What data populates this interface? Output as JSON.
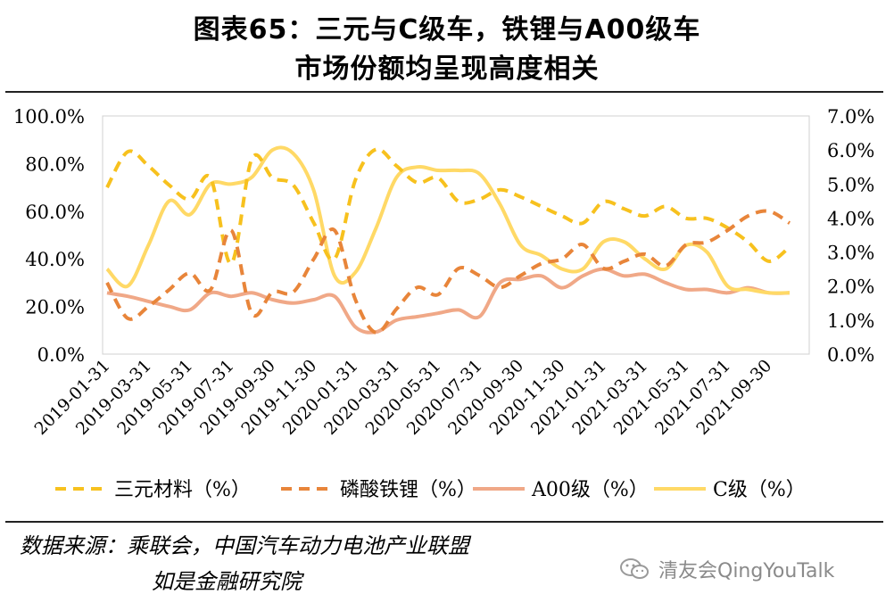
{
  "header": {
    "title_line1": "图表65：三元与C级车，铁锂与A00级车",
    "title_line2": "市场份额均呈现高度相关"
  },
  "footer": {
    "source_line1": "数据来源：乘联会，中国汽车动力电池产业联盟",
    "source_line2": "如是金融研究院",
    "watermark_text": "清友会QingYouTalk"
  },
  "chart_data": {
    "type": "line",
    "x": [
      "2019-01-31",
      "2019-02-28",
      "2019-03-31",
      "2019-04-30",
      "2019-05-31",
      "2019-06-30",
      "2019-07-31",
      "2019-08-31",
      "2019-09-30",
      "2019-10-31",
      "2019-11-30",
      "2019-12-31",
      "2020-01-31",
      "2020-02-29",
      "2020-03-31",
      "2020-04-30",
      "2020-05-31",
      "2020-06-30",
      "2020-07-31",
      "2020-08-31",
      "2020-09-30",
      "2020-10-31",
      "2020-11-30",
      "2020-12-31",
      "2021-01-31",
      "2021-02-28",
      "2021-03-31",
      "2021-04-30",
      "2021-05-31",
      "2021-06-30",
      "2021-07-31",
      "2021-08-31",
      "2021-09-30",
      "2021-10-31"
    ],
    "xticks": [
      "2019-01-31",
      "2019-03-31",
      "2019-05-31",
      "2019-07-31",
      "2019-09-30",
      "2019-11-30",
      "2020-01-31",
      "2020-03-31",
      "2020-05-31",
      "2020-07-31",
      "2020-09-30",
      "2020-11-30",
      "2021-01-31",
      "2021-03-31",
      "2021-05-31",
      "2021-07-31",
      "2021-09-30"
    ],
    "y_left": {
      "ticks": [
        "0.0%",
        "20.0%",
        "40.0%",
        "60.0%",
        "80.0%",
        "100.0%"
      ],
      "ylim": [
        0,
        100
      ]
    },
    "y_right": {
      "ticks": [
        "0.0%",
        "1.0%",
        "2.0%",
        "3.0%",
        "4.0%",
        "5.0%",
        "6.0%",
        "7.0%"
      ],
      "ylim": [
        0,
        7
      ]
    },
    "grid": false,
    "legend_position": "bottom",
    "series": [
      {
        "name": "三元材料（%）",
        "axis": "left",
        "style": "dashed",
        "color": "#F7C11E",
        "values": [
          70,
          85,
          79,
          71,
          65,
          74,
          38,
          82,
          74,
          71,
          55,
          40,
          73,
          86,
          79,
          72,
          74,
          64,
          65,
          69,
          66,
          62,
          58,
          55,
          64,
          61,
          58,
          62,
          57,
          57,
          53,
          47,
          39,
          45
        ]
      },
      {
        "name": "磷酸铁锂（%）",
        "axis": "left",
        "style": "dashed",
        "color": "#E8853A",
        "values": [
          30,
          15,
          20,
          27,
          34,
          27,
          52,
          17,
          26,
          26,
          40,
          52,
          23,
          9,
          19,
          28,
          25,
          36,
          33,
          28,
          33,
          38,
          40,
          46,
          36,
          39,
          42,
          37,
          46,
          47,
          52,
          58,
          60,
          55
        ]
      },
      {
        "name": "A00级（%）",
        "axis": "right",
        "style": "solid",
        "color": "#F0A887",
        "values": [
          1.8,
          1.7,
          1.55,
          1.4,
          1.3,
          1.8,
          1.7,
          1.8,
          1.6,
          1.5,
          1.6,
          1.7,
          0.8,
          0.65,
          1.0,
          1.1,
          1.2,
          1.3,
          1.1,
          2.1,
          2.2,
          2.3,
          1.95,
          2.3,
          2.5,
          2.3,
          2.35,
          2.1,
          1.9,
          1.9,
          1.8,
          1.95,
          1.8,
          1.8
        ]
      },
      {
        "name": "C级（%）",
        "axis": "right",
        "style": "solid",
        "color": "#FFD966",
        "values": [
          2.5,
          2.0,
          3.2,
          4.5,
          4.1,
          5.0,
          5.0,
          5.2,
          6.0,
          5.9,
          4.8,
          2.3,
          2.4,
          3.7,
          5.2,
          5.5,
          5.4,
          5.4,
          5.3,
          4.4,
          3.2,
          2.9,
          2.5,
          2.5,
          3.3,
          3.3,
          2.8,
          2.5,
          3.2,
          3.0,
          2.0,
          1.9,
          1.8,
          1.8
        ]
      }
    ]
  }
}
